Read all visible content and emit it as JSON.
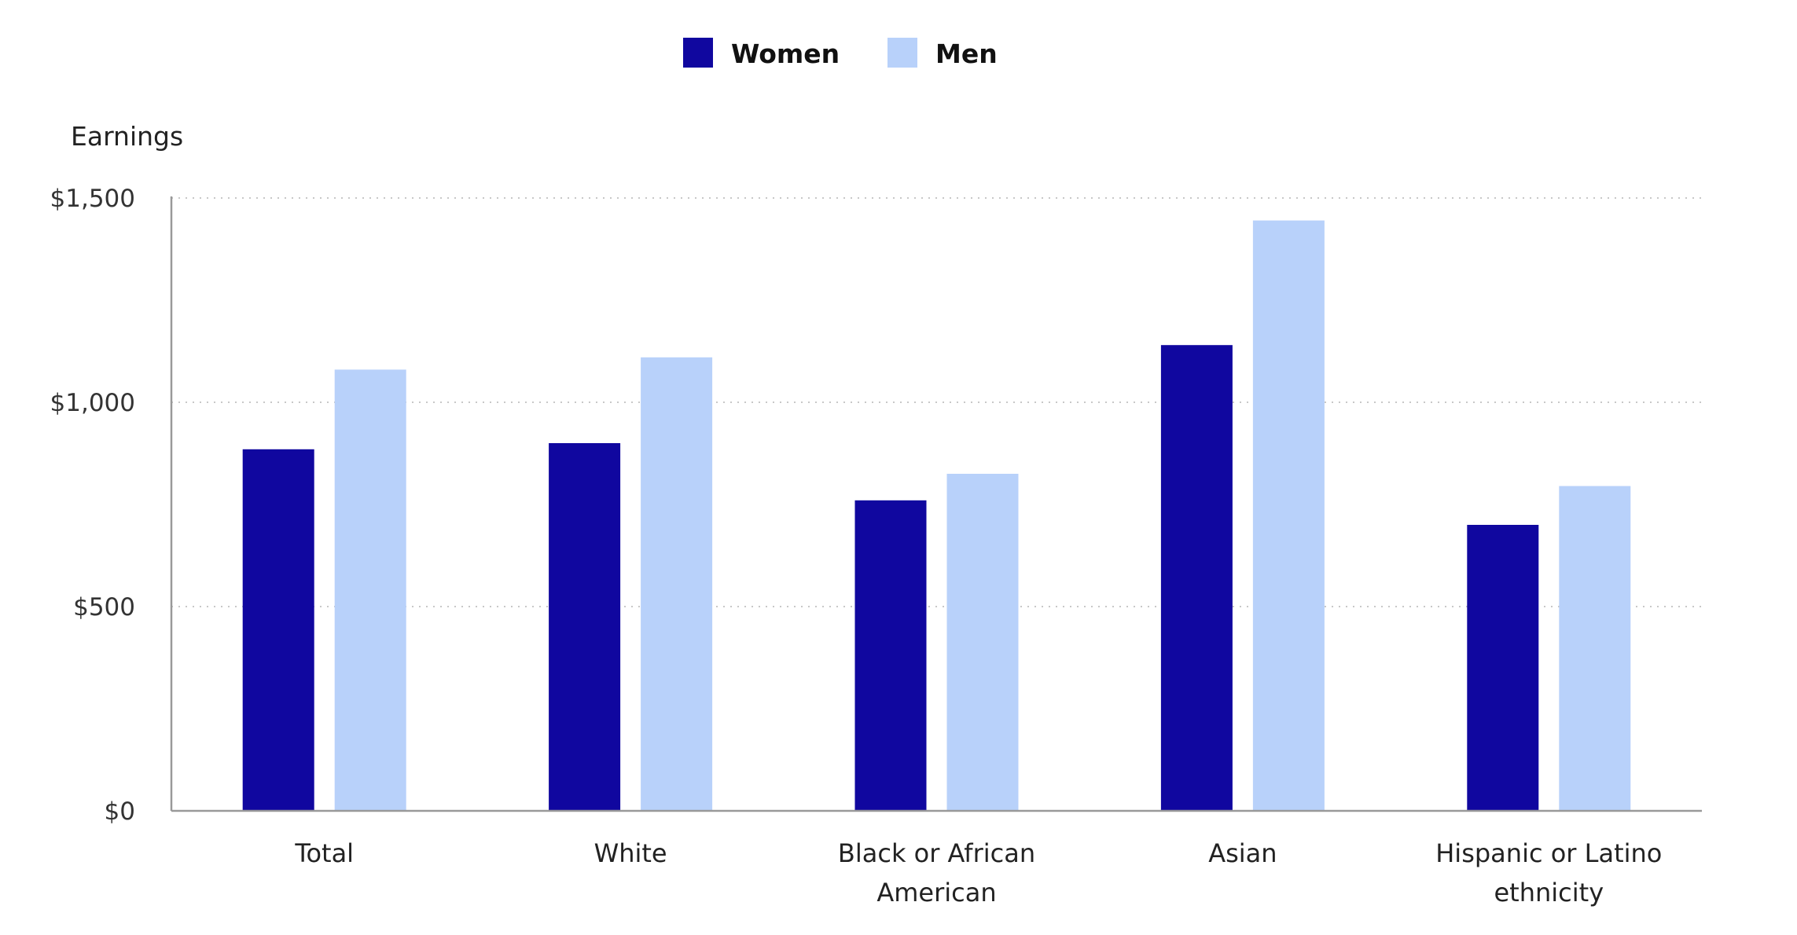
{
  "chart_data": {
    "type": "bar",
    "title": "",
    "xlabel": "",
    "ylabel": "Earnings",
    "ylim": [
      0,
      1500
    ],
    "yticks": [
      0,
      500,
      1000,
      1500
    ],
    "ytick_labels": [
      "$0",
      "$500",
      "$1,000",
      "$1,500"
    ],
    "grid": true,
    "legend_position": "top-center",
    "categories": [
      [
        "Total"
      ],
      [
        "White"
      ],
      [
        "Black or African",
        "American"
      ],
      [
        "Asian"
      ],
      [
        "Hispanic or Latino",
        "ethnicity"
      ]
    ],
    "series": [
      {
        "name": "Women",
        "color": "#10079f",
        "values": [
          885,
          900,
          760,
          1140,
          700
        ]
      },
      {
        "name": "Men",
        "color": "#b8d1fa",
        "values": [
          1080,
          1110,
          825,
          1445,
          795
        ]
      }
    ]
  }
}
